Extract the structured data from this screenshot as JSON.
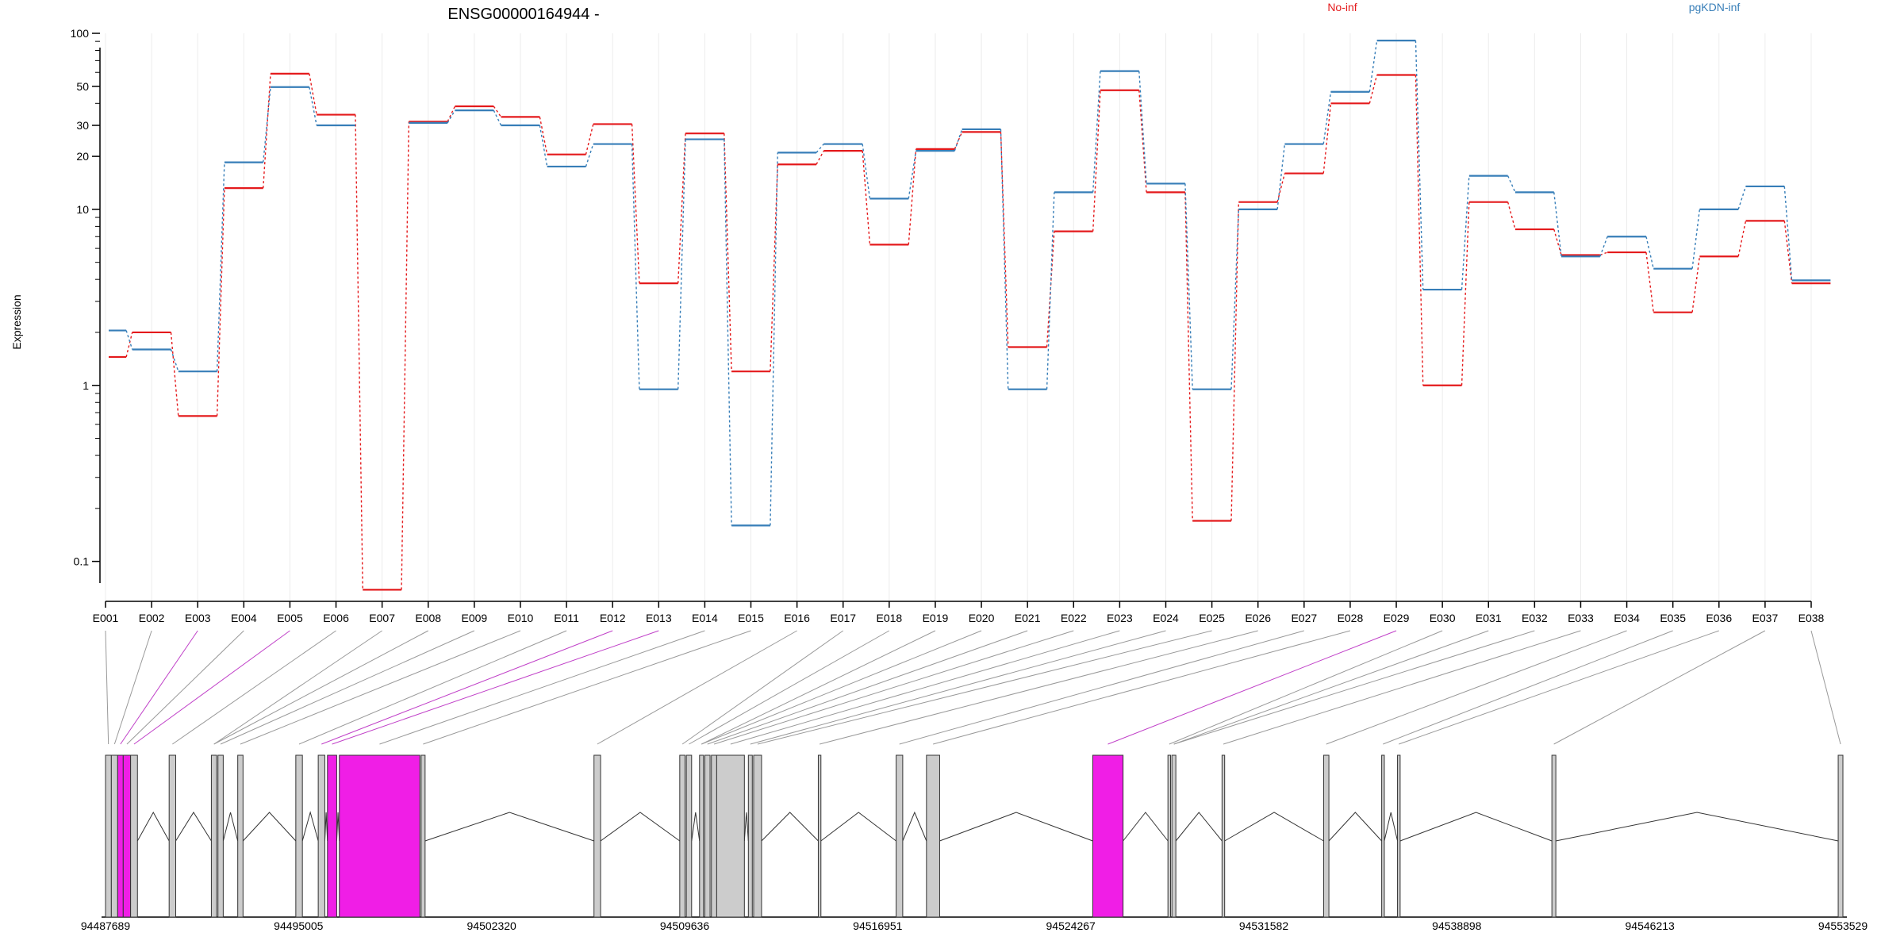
{
  "chart_data": {
    "type": "line",
    "title": "ENSG00000164944 -",
    "ylabel": "Expression",
    "y_scale": "log",
    "ylim": [
      0.07,
      100
    ],
    "y_ticks": [
      0.1,
      1,
      10,
      20,
      30,
      50,
      100
    ],
    "categories": [
      "E001",
      "E002",
      "E003",
      "E004",
      "E005",
      "E006",
      "E007",
      "E008",
      "E009",
      "E010",
      "E011",
      "E012",
      "E013",
      "E014",
      "E015",
      "E016",
      "E017",
      "E018",
      "E019",
      "E020",
      "E021",
      "E022",
      "E023",
      "E024",
      "E025",
      "E026",
      "E027",
      "E028",
      "E029",
      "E030",
      "E031",
      "E032",
      "E033",
      "E034",
      "E035",
      "E036",
      "E037",
      "E038"
    ],
    "series": [
      {
        "name": "No-inf",
        "color": "#e41a1c",
        "values": [
          1.45,
          2.0,
          0.67,
          13.2,
          59,
          34.5,
          0.069,
          31.5,
          38.5,
          33.5,
          20.5,
          30.5,
          3.8,
          27,
          1.2,
          18,
          21.5,
          6.3,
          22,
          27.5,
          1.65,
          7.5,
          47.5,
          12.5,
          0.17,
          11,
          16,
          40,
          58,
          1.0,
          11,
          7.7,
          5.5,
          5.7,
          2.6,
          5.4,
          8.6,
          3.8
        ]
      },
      {
        "name": "pgKDN-inf",
        "color": "#377eb8",
        "values": [
          2.05,
          1.6,
          1.2,
          18.5,
          49.5,
          30,
          null,
          31,
          36.5,
          30,
          17.5,
          23.5,
          0.95,
          25,
          0.16,
          21,
          23.5,
          11.5,
          21.5,
          28.5,
          0.95,
          12.5,
          61,
          14,
          0.95,
          10,
          23.5,
          46.5,
          91,
          3.5,
          15.5,
          12.5,
          5.4,
          7,
          4.6,
          10,
          13.5,
          3.95
        ]
      }
    ],
    "legend": [
      "No-inf",
      "pgKDN-inf"
    ],
    "legend_placement": "top",
    "gene_track": {
      "genomic_ticks": [
        "94487689",
        "94495005",
        "94502320",
        "94509636",
        "94516951",
        "94524267",
        "94531582",
        "94538898",
        "94546213",
        "94553529"
      ],
      "genomic_range": [
        94487689,
        94553529
      ],
      "exons": [
        [
          94487689,
          94487910
        ],
        [
          94487910,
          94488150
        ],
        [
          94488150,
          94488360
        ],
        [
          94488360,
          94488640
        ],
        [
          94488640,
          94488900
        ],
        [
          94490100,
          94490350
        ],
        [
          94491700,
          94491900
        ],
        [
          94491950,
          94492150
        ],
        [
          94492700,
          94492900
        ],
        [
          94494900,
          94495150
        ],
        [
          94495750,
          94496000
        ],
        [
          94496100,
          94496450
        ],
        [
          94496550,
          94499600
        ],
        [
          94499650,
          94499800
        ],
        [
          94506200,
          94506450
        ],
        [
          94509450,
          94509650
        ],
        [
          94509700,
          94509900
        ],
        [
          94510200,
          94510350
        ],
        [
          94510400,
          94510600
        ],
        [
          94510650,
          94510850
        ],
        [
          94510850,
          94511900
        ],
        [
          94512050,
          94512200
        ],
        [
          94512250,
          94512550
        ],
        [
          94514700,
          94514800
        ],
        [
          94517650,
          94517900
        ],
        [
          94518800,
          94519300
        ],
        [
          94525100,
          94526250
        ],
        [
          94527950,
          94528050
        ],
        [
          94528100,
          94528250
        ],
        [
          94530000,
          94530100
        ],
        [
          94533850,
          94534050
        ],
        [
          94536050,
          94536150
        ],
        [
          94536650,
          94536750
        ],
        [
          94542500,
          94542650
        ],
        [
          94553350,
          94553529
        ]
      ],
      "highlighted_exons": [
        2,
        3,
        11,
        12,
        26
      ],
      "highlight_color": "#f01ee6"
    }
  }
}
